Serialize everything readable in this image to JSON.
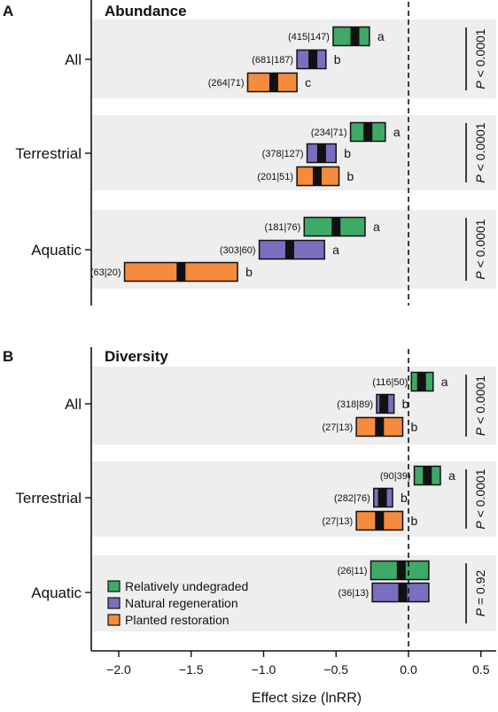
{
  "figure": {
    "xlabel": "Effect size (lnRR)",
    "x_ticks": [
      -2.0,
      -1.5,
      -1.0,
      -0.5,
      0.0,
      0.5
    ],
    "x_tick_labels": [
      "−2.0",
      "−1.5",
      "−1.0",
      "−0.5",
      "0.0",
      "0.5"
    ],
    "xlim": [
      -2.2,
      0.6
    ],
    "colors": {
      "Relatively undegraded": "#3fa968",
      "Natural regeneration": "#7a6fbf",
      "Planted restoration": "#f58b3c",
      "band": "#eeeeee"
    }
  },
  "chart_data": [
    {
      "type": "bar",
      "panel_letter": "A",
      "title": "Abundance",
      "groups": [
        {
          "name": "All",
          "p_text": "< 0.0001",
          "bars": [
            {
              "series": "Relatively undegraded",
              "mean": -0.37,
              "ci": [
                -0.52,
                -0.27
              ],
              "n_label": "(415|147)",
              "letter": "a"
            },
            {
              "series": "Natural regeneration",
              "mean": -0.66,
              "ci": [
                -0.77,
                -0.57
              ],
              "n_label": "(681|187)",
              "letter": "b"
            },
            {
              "series": "Planted restoration",
              "mean": -0.93,
              "ci": [
                -1.11,
                -0.77
              ],
              "n_label": "(264|71)",
              "letter": "c"
            }
          ]
        },
        {
          "name": "Terrestrial",
          "p_text": "< 0.0001",
          "bars": [
            {
              "series": "Relatively undegraded",
              "mean": -0.28,
              "ci": [
                -0.4,
                -0.16
              ],
              "n_label": "(234|71)",
              "letter": "a"
            },
            {
              "series": "Natural regeneration",
              "mean": -0.6,
              "ci": [
                -0.7,
                -0.5
              ],
              "n_label": "(378|127)",
              "letter": "b"
            },
            {
              "series": "Planted restoration",
              "mean": -0.63,
              "ci": [
                -0.77,
                -0.48
              ],
              "n_label": "(201|51)",
              "letter": "b"
            }
          ]
        },
        {
          "name": "Aquatic",
          "p_text": "< 0.0001",
          "bars": [
            {
              "series": "Relatively undegraded",
              "mean": -0.5,
              "ci": [
                -0.72,
                -0.3
              ],
              "n_label": "(181|76)",
              "letter": "a"
            },
            {
              "series": "Natural regeneration",
              "mean": -0.82,
              "ci": [
                -1.03,
                -0.58
              ],
              "n_label": "(303|60)",
              "letter": "a"
            },
            {
              "series": "Planted restoration",
              "mean": -1.57,
              "ci": [
                -1.96,
                -1.18
              ],
              "n_label": "(63|20)",
              "letter": "b"
            }
          ]
        }
      ]
    },
    {
      "type": "bar",
      "panel_letter": "B",
      "title": "Diversity",
      "groups": [
        {
          "name": "All",
          "p_text": "< 0.0001",
          "bars": [
            {
              "series": "Relatively undegraded",
              "mean": 0.09,
              "ci": [
                0.02,
                0.17
              ],
              "n_label": "(116|50)",
              "letter": "a"
            },
            {
              "series": "Natural regeneration",
              "mean": -0.17,
              "ci": [
                -0.22,
                -0.1
              ],
              "n_label": "(318|89)",
              "letter": "b"
            },
            {
              "series": "Planted restoration",
              "mean": -0.2,
              "ci": [
                -0.36,
                -0.04
              ],
              "n_label": "(27|13)",
              "letter": "b"
            }
          ]
        },
        {
          "name": "Terrestrial",
          "p_text": "< 0.0001",
          "bars": [
            {
              "series": "Relatively undegraded",
              "mean": 0.13,
              "ci": [
                0.04,
                0.22
              ],
              "n_label": "(90|39)",
              "letter": "a"
            },
            {
              "series": "Natural regeneration",
              "mean": -0.18,
              "ci": [
                -0.24,
                -0.11
              ],
              "n_label": "(282|76)",
              "letter": "b"
            },
            {
              "series": "Planted restoration",
              "mean": -0.2,
              "ci": [
                -0.36,
                -0.04
              ],
              "n_label": "(27|13)",
              "letter": "b"
            }
          ]
        },
        {
          "name": "Aquatic",
          "p_text": "= 0.92",
          "bars": [
            {
              "series": "Relatively undegraded",
              "mean": -0.05,
              "ci": [
                -0.26,
                0.14
              ],
              "n_label": "(26|11)",
              "letter": ""
            },
            {
              "series": "Natural regeneration",
              "mean": -0.04,
              "ci": [
                -0.25,
                0.14
              ],
              "n_label": "(36|13)",
              "letter": ""
            }
          ]
        }
      ]
    }
  ],
  "legend": {
    "placement": "lower-left of panel B",
    "items": [
      "Relatively undegraded",
      "Natural regeneration",
      "Planted restoration"
    ]
  }
}
